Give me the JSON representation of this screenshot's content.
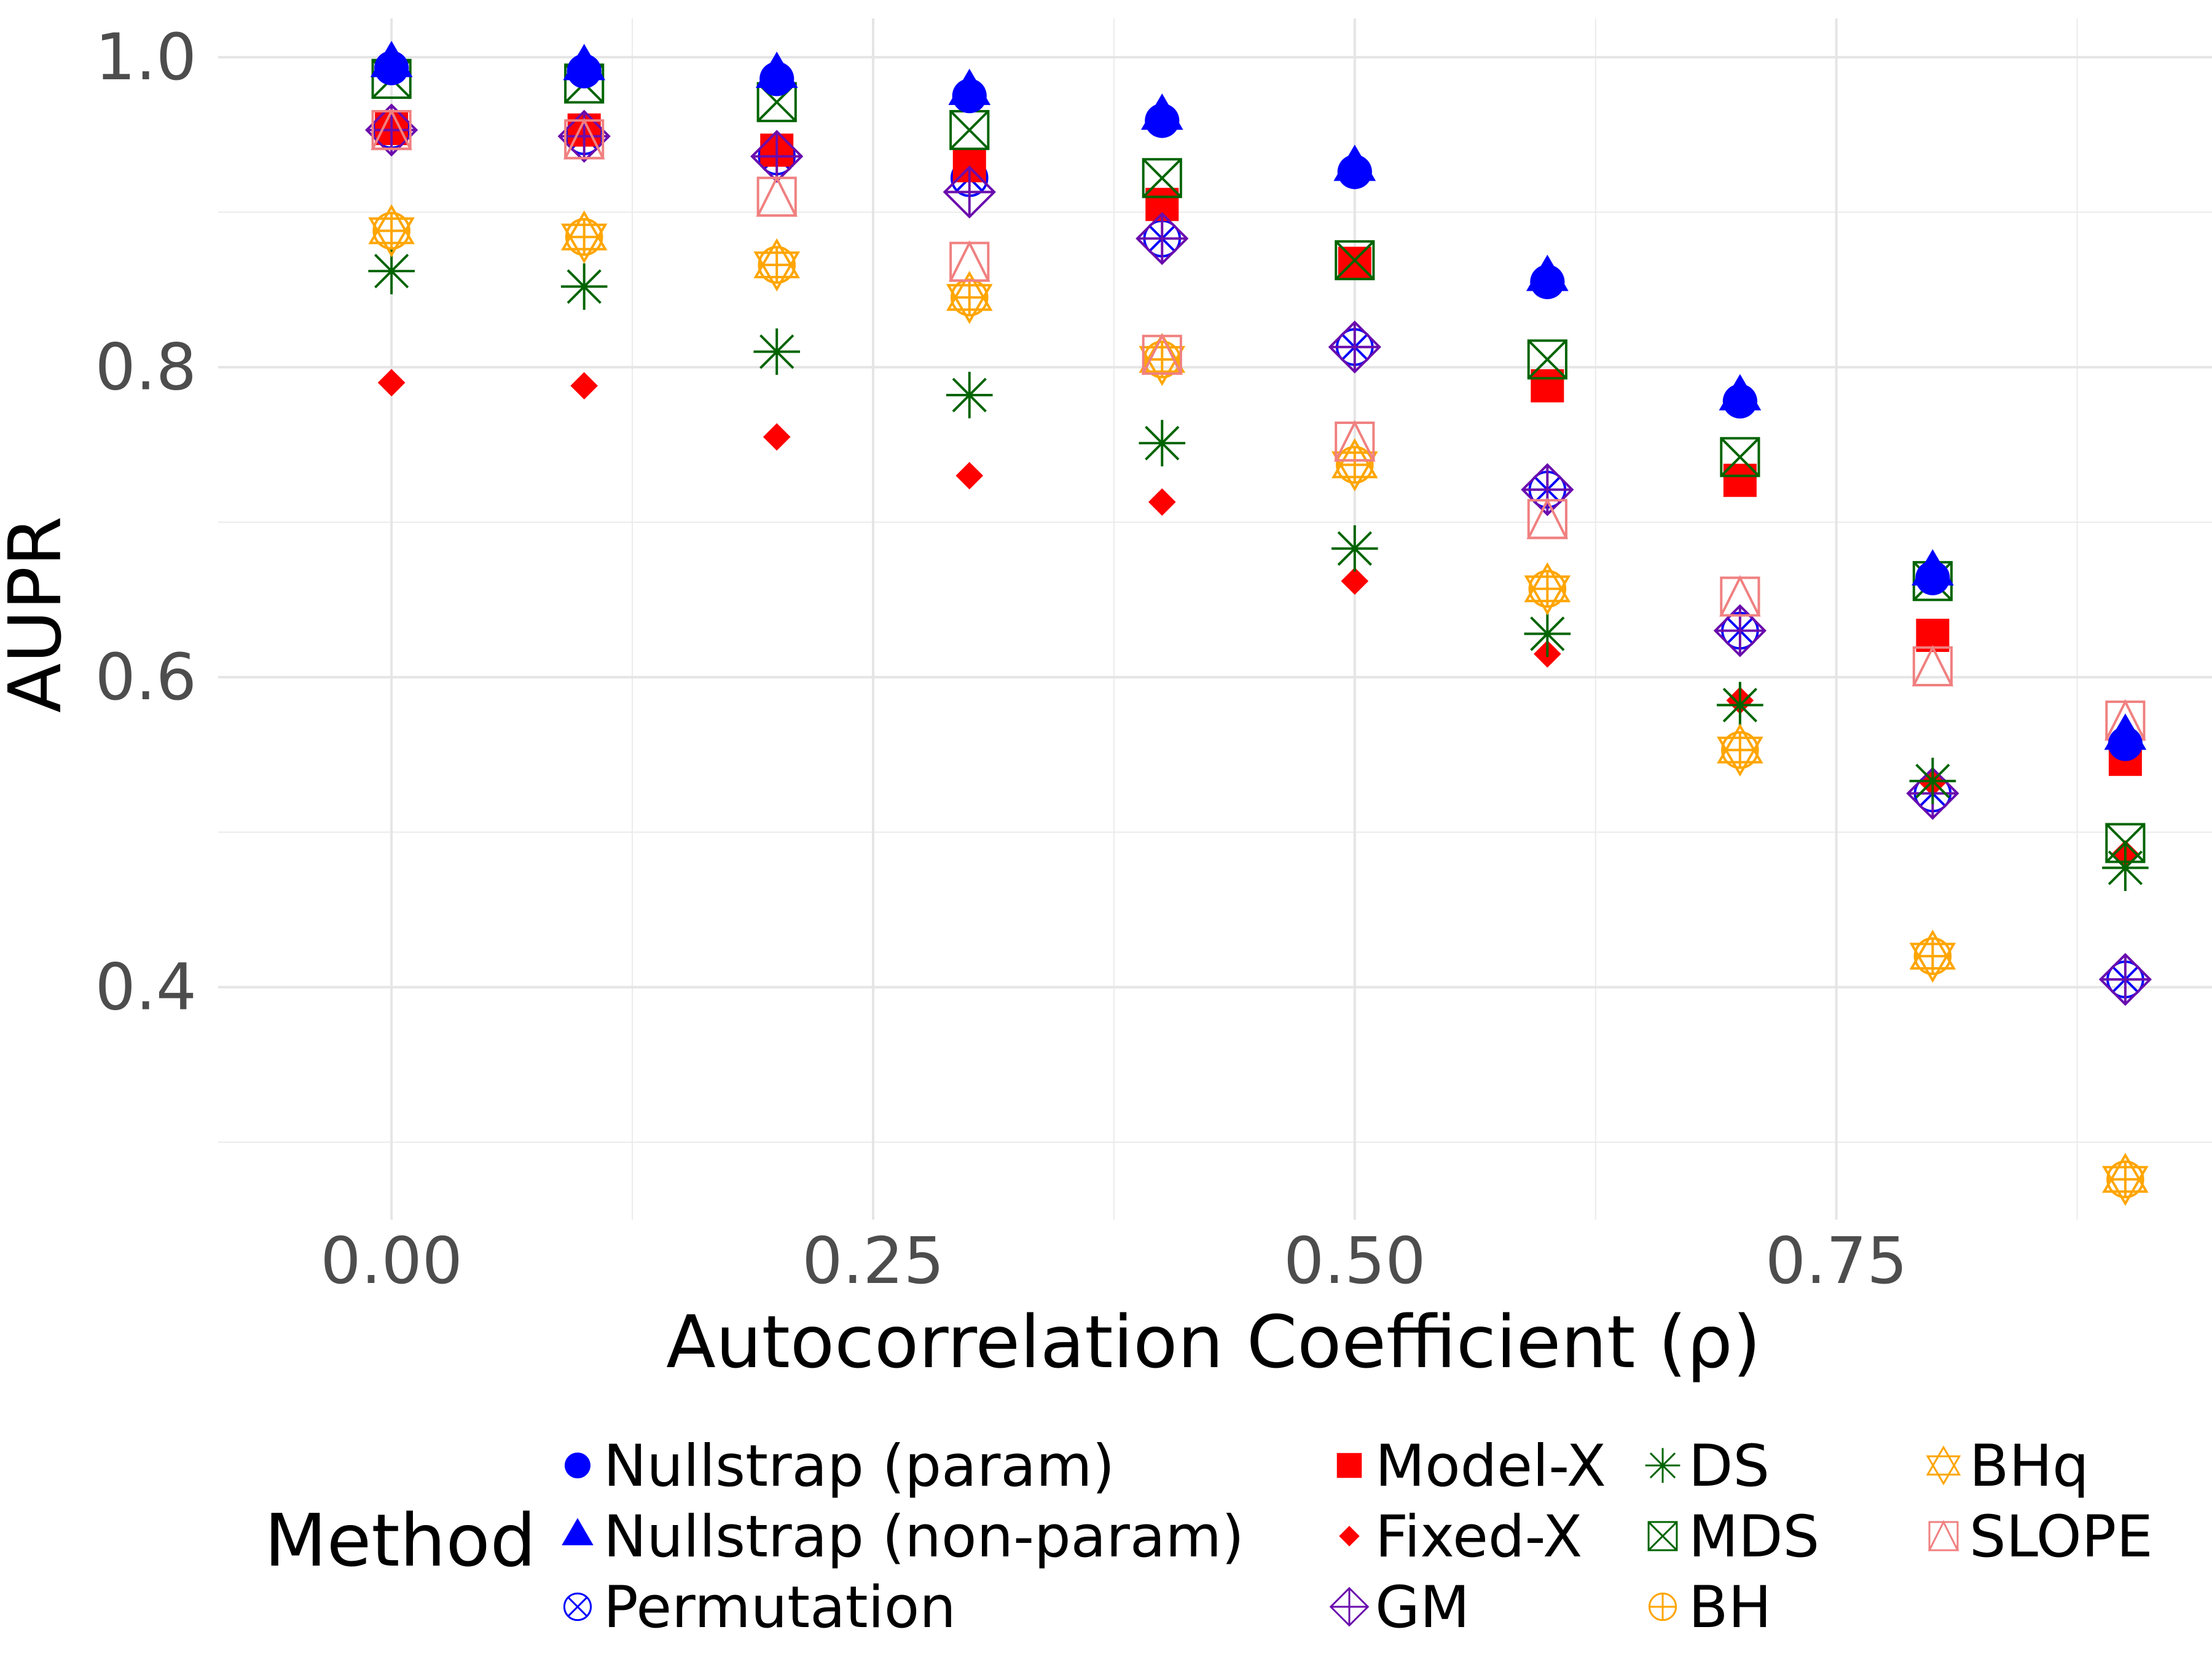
{
  "chart_data": {
    "type": "scatter",
    "title": "",
    "xlabel": "Autocorrelation Coefficient (ρ)",
    "ylabel": "AUPR",
    "x": [
      0.0,
      0.1,
      0.2,
      0.3,
      0.4,
      0.5,
      0.6,
      0.7,
      0.8,
      0.9
    ],
    "xlim": [
      -0.09,
      0.945
    ],
    "ylim": [
      0.25,
      1.025
    ],
    "xticks": [
      0.0,
      0.25,
      0.5,
      0.75
    ],
    "xtick_labels": [
      "0.00",
      "0.25",
      "0.50",
      "0.75"
    ],
    "yticks": [
      0.4,
      0.6,
      0.8,
      1.0
    ],
    "ytick_labels": [
      "0.4",
      "0.6",
      "0.8",
      "1.0"
    ],
    "grid": true,
    "legend_position": "bottom",
    "legend_title": "Method",
    "series": [
      {
        "name": "Nullstrap (param)",
        "marker": "circle-filled",
        "color": "#0000FF",
        "values": [
          0.993,
          0.991,
          0.986,
          0.975,
          0.959,
          0.926,
          0.855,
          0.778,
          0.664,
          0.557
        ]
      },
      {
        "name": "Nullstrap (non-param)",
        "marker": "triangle-filled",
        "color": "#0000FF",
        "values": [
          0.995,
          0.993,
          0.988,
          0.977,
          0.961,
          0.928,
          0.857,
          0.78,
          0.667,
          0.561
        ]
      },
      {
        "name": "Permutation",
        "marker": "circle-x",
        "color": "#0000FF",
        "values": [
          0.953,
          0.949,
          0.936,
          0.922,
          0.883,
          0.813,
          0.721,
          0.63,
          0.525,
          0.405
        ]
      },
      {
        "name": "Model-X",
        "marker": "square-filled",
        "color": "#FF0000",
        "values": [
          0.954,
          0.953,
          0.94,
          0.93,
          0.905,
          0.867,
          0.788,
          0.727,
          0.627,
          0.547
        ]
      },
      {
        "name": "Fixed-X",
        "marker": "diamond-filled",
        "color": "#FF0000",
        "values": [
          0.79,
          0.788,
          0.755,
          0.73,
          0.713,
          0.662,
          0.615,
          0.585,
          0.532,
          0.486
        ]
      },
      {
        "name": "GM",
        "marker": "diamond-plus",
        "color": "#6A0DAD",
        "values": [
          0.953,
          0.949,
          0.936,
          0.913,
          0.883,
          0.813,
          0.721,
          0.63,
          0.525,
          0.405
        ]
      },
      {
        "name": "DS",
        "marker": "asterisk",
        "color": "#006400",
        "values": [
          0.862,
          0.852,
          0.81,
          0.782,
          0.751,
          0.683,
          0.628,
          0.582,
          0.533,
          0.477
        ]
      },
      {
        "name": "MDS",
        "marker": "square-x",
        "color": "#006400",
        "values": [
          0.986,
          0.983,
          0.971,
          0.953,
          0.922,
          0.869,
          0.805,
          0.742,
          0.662,
          0.493
        ]
      },
      {
        "name": "BH",
        "marker": "circle-plus",
        "color": "#FFA500",
        "values": [
          0.888,
          0.884,
          0.866,
          0.845,
          0.805,
          0.737,
          0.657,
          0.553,
          0.42,
          0.276
        ]
      },
      {
        "name": "BHq",
        "marker": "star-of-david",
        "color": "#FFA500",
        "values": [
          0.888,
          0.884,
          0.866,
          0.845,
          0.805,
          0.737,
          0.657,
          0.553,
          0.42,
          0.276
        ]
      },
      {
        "name": "SLOPE",
        "marker": "triangle-open-square",
        "color": "#F08080",
        "values": [
          0.953,
          0.947,
          0.91,
          0.868,
          0.808,
          0.752,
          0.702,
          0.652,
          0.607,
          0.572
        ]
      }
    ],
    "legend_columns": [
      [
        "Nullstrap (param)",
        "Nullstrap (non-param)",
        "Permutation"
      ],
      [
        "Model-X",
        "Fixed-X",
        "GM"
      ],
      [
        "DS",
        "MDS",
        "BH"
      ],
      [
        "BHq",
        "SLOPE"
      ]
    ]
  }
}
